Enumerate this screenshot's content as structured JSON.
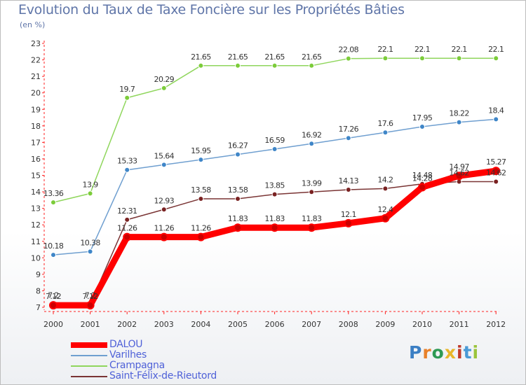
{
  "header": {
    "title": "Evolution du Taux de Taxe Foncière sur les Propriétés Bâties",
    "subtitle": "(en %)"
  },
  "brand": {
    "text": "Proxiti",
    "letter_colors": [
      "#3b7fc4",
      "#e8812a",
      "#2e9a54",
      "#e8b62a",
      "#c0392b",
      "#4a9ad6",
      "#9ac43b"
    ]
  },
  "chart_data": {
    "type": "line",
    "title": "Evolution du Taux de Taxe Foncière sur les Propriétés Bâties",
    "ylabel": "(en %)",
    "xlabel": "",
    "ylim": [
      7,
      23
    ],
    "yticks": [
      "7",
      "8",
      "9",
      "10",
      "11",
      "12",
      "13",
      "14",
      "15",
      "16",
      "17",
      "18",
      "19",
      "20",
      "21",
      "22",
      "23"
    ],
    "categories": [
      "2000",
      "2001",
      "2002",
      "2003",
      "2004",
      "2005",
      "2006",
      "2007",
      "2008",
      "2009",
      "2010",
      "2011",
      "2012"
    ],
    "grid": false,
    "legend_position": "bottom-left",
    "series": [
      {
        "name": "DALOU",
        "color": "#ff0000",
        "marker_color": "#cc0000",
        "values": [
          7.12,
          7.12,
          11.26,
          11.26,
          11.26,
          11.83,
          11.83,
          11.83,
          12.1,
          12.4,
          14.28,
          14.97,
          15.27
        ],
        "labels": [
          "7.12",
          "7.12",
          "11.26",
          "11.26",
          "11.26",
          "11.83",
          "11.83",
          "11.83",
          "12.1",
          "12.4",
          "14.28",
          "14.97",
          "15.27"
        ]
      },
      {
        "name": "Varilhes",
        "color": "#6f9fd0",
        "marker_color": "#3f86c8",
        "values": [
          10.18,
          10.38,
          15.33,
          15.64,
          15.95,
          16.27,
          16.59,
          16.92,
          17.26,
          17.6,
          17.95,
          18.22,
          18.4
        ],
        "labels": [
          "10.18",
          "10.38",
          "15.33",
          "15.64",
          "15.95",
          "16.27",
          "16.59",
          "16.92",
          "17.26",
          "17.6",
          "17.95",
          "18.22",
          "18.4"
        ]
      },
      {
        "name": "Crampagna",
        "color": "#8fd65c",
        "marker_color": "#7ccc3a",
        "values": [
          13.36,
          13.9,
          19.7,
          20.29,
          21.65,
          21.65,
          21.65,
          21.65,
          22.08,
          22.1,
          22.1,
          22.1,
          22.1
        ],
        "labels": [
          "13.36",
          "13.9",
          "19.7",
          "20.29",
          "21.65",
          "21.65",
          "21.65",
          "21.65",
          "22.08",
          "22.1",
          "22.1",
          "22.1",
          "22.1"
        ]
      },
      {
        "name": "Saint-Félix-de-Rieutord",
        "color": "#7a3434",
        "marker_color": "#7a2222",
        "values": [
          7.2,
          7.2,
          12.31,
          12.93,
          13.58,
          13.58,
          13.85,
          13.99,
          14.13,
          14.2,
          14.48,
          14.62,
          14.62
        ],
        "labels": [
          "7.2",
          "7.2",
          "12.31",
          "12.93",
          "13.58",
          "13.58",
          "13.85",
          "13.99",
          "14.13",
          "14.2",
          "14.48",
          "14.62",
          "14.62"
        ]
      }
    ]
  }
}
